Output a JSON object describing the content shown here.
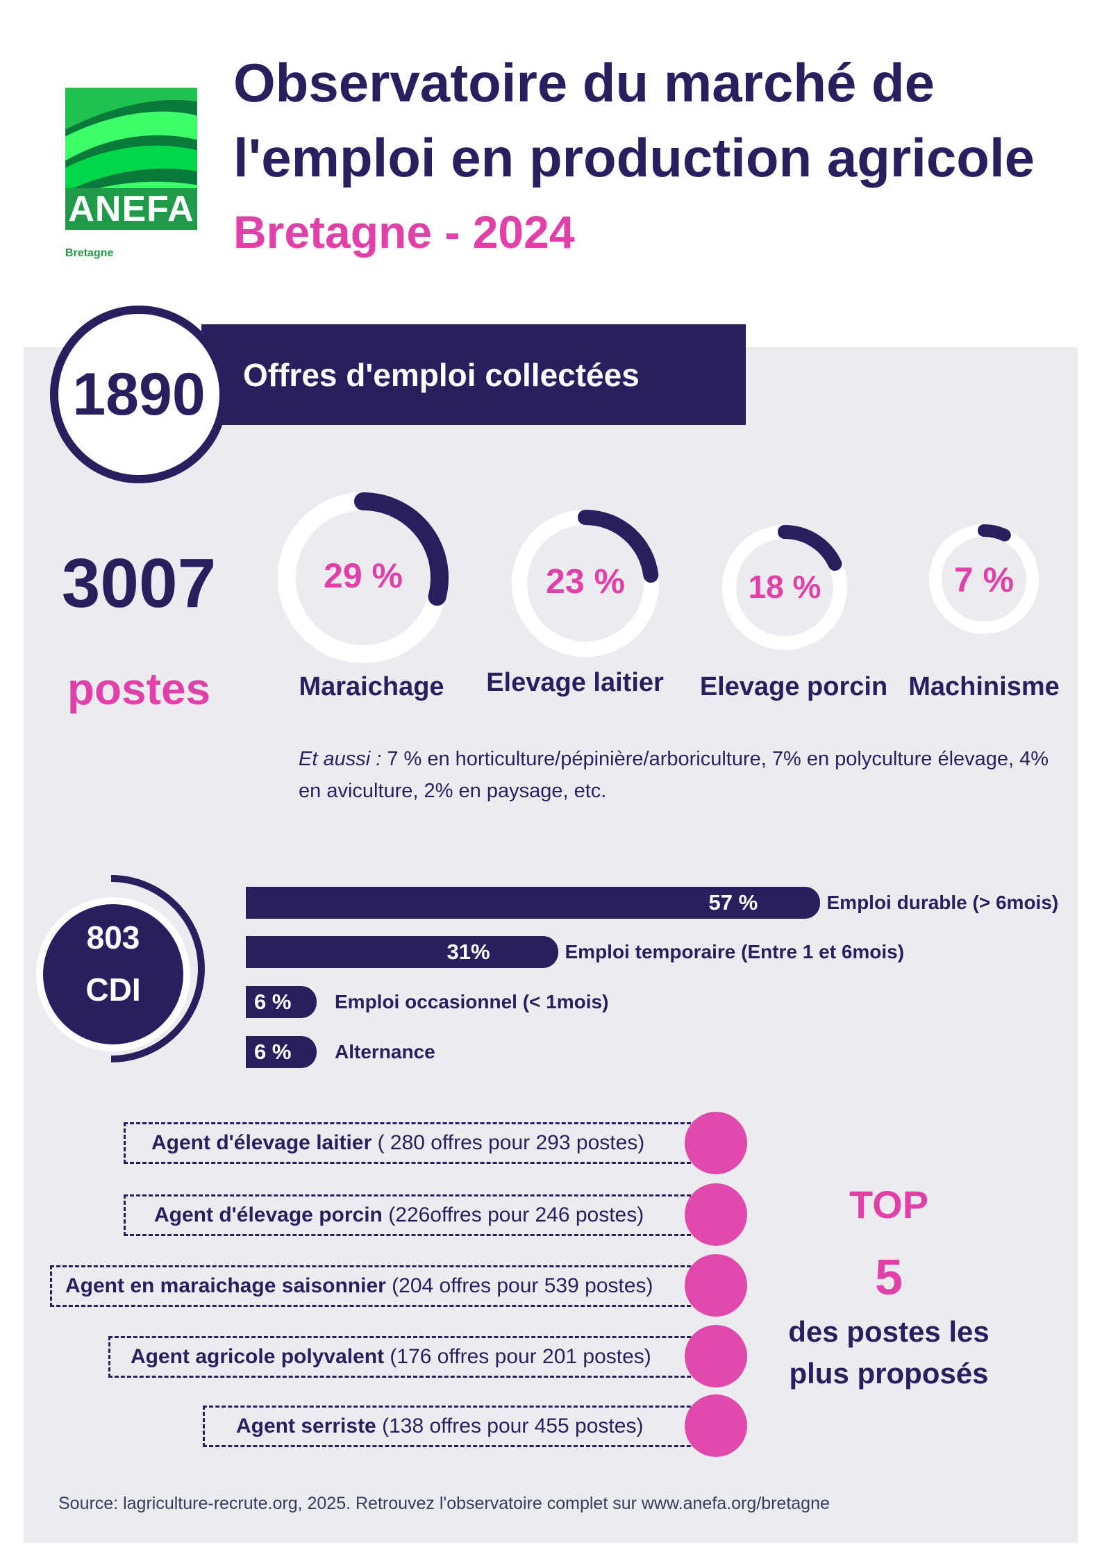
{
  "logo": {
    "name": "ANEFA",
    "sub": "Bretagne",
    "colors": [
      "#00d64a",
      "#1f9a48",
      "#0a7a3a",
      "#3dff6a"
    ]
  },
  "header": {
    "title_line1": "Observatoire du marché de",
    "title_line2": "l'emploi en production agricole",
    "subtitle": "Bretagne - 2024"
  },
  "offres": {
    "value": "1890",
    "label": "Offres d'emploi collectées"
  },
  "postes": {
    "value": "3007",
    "label": "postes"
  },
  "sectors": [
    {
      "label": "Maraichage",
      "value_text": "29 %",
      "percent": 29
    },
    {
      "label": "Elevage laitier",
      "value_text": "23 %",
      "percent": 23
    },
    {
      "label": "Elevage porcin",
      "value_text": "18 %",
      "percent": 18
    },
    {
      "label": "Machinisme",
      "value_text": "7 %",
      "percent": 7
    }
  ],
  "note": {
    "lead": "Et aussi :",
    "text": " 7 % en horticulture/pépinière/arboriculture, 7% en polyculture élevage, 4% en aviculture, 2% en paysage, etc."
  },
  "cdi": {
    "value": "803",
    "label": "CDI"
  },
  "contracts": [
    {
      "value_text": "57 %",
      "label": "Emploi durable (> 6mois)",
      "percent": 57
    },
    {
      "value_text": "31%",
      "label": "Emploi temporaire (Entre 1 et 6mois)",
      "percent": 31
    },
    {
      "value_text": "6 %",
      "label": "Emploi occasionnel (< 1mois)",
      "percent": 6
    },
    {
      "value_text": "6 %",
      "label": "Alternance",
      "percent": 6
    }
  ],
  "top5": {
    "title": "TOP",
    "number": "5",
    "subtitle_line1": "des postes les",
    "subtitle_line2": "plus proposés",
    "jobs": [
      {
        "title": "Agent d'élevage laitier",
        "detail": " ( 280 offres pour 293 postes)"
      },
      {
        "title": "Agent d'élevage  porcin",
        "detail": " (226offres pour 246 postes)"
      },
      {
        "title": "Agent en maraichage saisonnier",
        "detail": " (204 offres pour 539 postes)"
      },
      {
        "title": "Agent agricole polyvalent",
        "detail": " (176 offres pour 201 postes)"
      },
      {
        "title": "Agent  serriste",
        "detail": " (138 offres pour 455 postes)"
      }
    ]
  },
  "source": "Source: lagriculture-recrute.org, 2025. Retrouvez l'observatoire complet sur www.anefa.org/bretagne",
  "colors": {
    "navy": "#2a1f5e",
    "pink": "#e040a8",
    "panel": "#eaecf0"
  }
}
